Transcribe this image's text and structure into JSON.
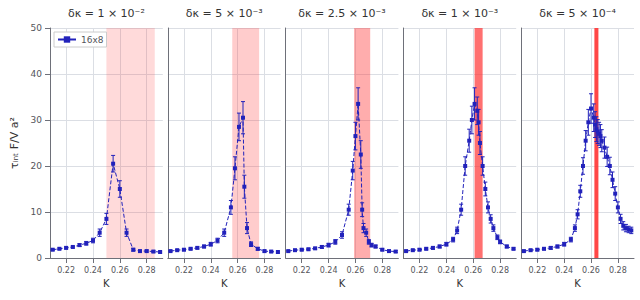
{
  "chart_data": [
    {
      "type": "line",
      "title": "δκ = 1 × 10⁻²",
      "xlabel": "K",
      "ylabel": "τᵢₙₜ F/V a²",
      "x": [
        0.21,
        0.215,
        0.22,
        0.225,
        0.23,
        0.235,
        0.24,
        0.245,
        0.25,
        0.255,
        0.26,
        0.265,
        0.27,
        0.275,
        0.28,
        0.285,
        0.29
      ],
      "series": [
        {
          "name": "16x8",
          "color": "#2222bb",
          "marker": "square",
          "line_style": "dashed",
          "values": [
            1.8,
            2.0,
            2.2,
            2.4,
            2.8,
            3.2,
            3.8,
            5.5,
            8.5,
            20.5,
            15.0,
            5.5,
            1.8,
            1.5,
            1.5,
            1.4,
            1.3
          ],
          "errors": [
            0.15,
            0.15,
            0.2,
            0.2,
            0.3,
            0.4,
            0.5,
            0.8,
            1.2,
            1.8,
            1.8,
            0.8,
            0.3,
            0.2,
            0.2,
            0.2,
            0.2
          ]
        }
      ],
      "shaded_region": {
        "from": 0.25,
        "to": 0.286,
        "color": "#ff3333"
      },
      "xlim": [
        0.208,
        0.292
      ],
      "ylim": [
        0,
        50
      ],
      "xticks": [
        0.22,
        0.24,
        0.26,
        0.28
      ],
      "yticks": [
        0,
        10,
        20,
        30,
        40,
        50
      ],
      "grid": true,
      "legend": "upper left"
    },
    {
      "type": "line",
      "title": "δκ = 5 × 10⁻³",
      "xlabel": "K",
      "x": [
        0.21,
        0.215,
        0.22,
        0.225,
        0.23,
        0.235,
        0.24,
        0.245,
        0.25,
        0.255,
        0.258,
        0.261,
        0.264,
        0.265,
        0.267,
        0.27,
        0.275,
        0.28,
        0.285,
        0.29
      ],
      "series": [
        {
          "name": "16x8",
          "color": "#2222bb",
          "marker": "square",
          "line_style": "dashed",
          "values": [
            1.5,
            1.7,
            1.8,
            2.0,
            2.2,
            2.5,
            3.0,
            3.8,
            5.5,
            11.0,
            19.5,
            28.5,
            30.5,
            15.5,
            6.5,
            3.0,
            2.0,
            1.5,
            1.4,
            1.3
          ],
          "errors": [
            0.15,
            0.15,
            0.2,
            0.2,
            0.2,
            0.3,
            0.4,
            0.5,
            0.8,
            1.5,
            2.5,
            3.0,
            3.5,
            2.5,
            1.2,
            0.5,
            0.3,
            0.2,
            0.2,
            0.2
          ]
        }
      ],
      "shaded_region": {
        "from": 0.256,
        "to": 0.276,
        "color": "#ff3333"
      },
      "xlim": [
        0.208,
        0.292
      ],
      "ylim": [
        0,
        50
      ],
      "xticks": [
        0.22,
        0.24,
        0.26,
        0.28
      ],
      "yticks": [
        0,
        10,
        20,
        30,
        40,
        50
      ],
      "grid": true,
      "tick_labels": "x"
    },
    {
      "type": "line",
      "title": "δκ = 2.5 × 10⁻³",
      "xlabel": "K",
      "x": [
        0.21,
        0.215,
        0.22,
        0.225,
        0.23,
        0.235,
        0.24,
        0.245,
        0.25,
        0.255,
        0.258,
        0.26,
        0.262,
        0.264,
        0.265,
        0.266,
        0.268,
        0.27,
        0.272,
        0.275,
        0.28,
        0.285,
        0.29
      ],
      "series": [
        {
          "name": "16x8",
          "color": "#2222bb",
          "marker": "square",
          "line_style": "dashed",
          "values": [
            1.5,
            1.7,
            1.8,
            1.9,
            2.1,
            2.4,
            2.8,
            3.5,
            5.0,
            10.5,
            19.0,
            26.5,
            33.5,
            22.5,
            10.5,
            6.5,
            5.5,
            3.5,
            2.8,
            2.5,
            1.8,
            1.5,
            1.4
          ],
          "errors": [
            0.15,
            0.15,
            0.2,
            0.2,
            0.2,
            0.3,
            0.4,
            0.5,
            0.7,
            1.2,
            2.0,
            3.0,
            3.5,
            3.0,
            1.5,
            1.0,
            0.8,
            0.5,
            0.4,
            0.3,
            0.2,
            0.2,
            0.2
          ]
        }
      ],
      "shaded_region": {
        "from": 0.259,
        "to": 0.271,
        "color": "#ff3333"
      },
      "xlim": [
        0.208,
        0.292
      ],
      "ylim": [
        0,
        50
      ],
      "xticks": [
        0.22,
        0.24,
        0.26,
        0.28
      ],
      "yticks": [
        0,
        10,
        20,
        30,
        40,
        50
      ],
      "grid": true,
      "tick_labels": "x"
    },
    {
      "type": "line",
      "title": "δκ = 1 × 10⁻³",
      "xlabel": "K",
      "x": [
        0.21,
        0.215,
        0.22,
        0.225,
        0.23,
        0.235,
        0.24,
        0.245,
        0.248,
        0.251,
        0.254,
        0.257,
        0.259,
        0.261,
        0.263,
        0.264,
        0.265,
        0.267,
        0.269,
        0.271,
        0.273,
        0.275,
        0.278,
        0.28,
        0.285,
        0.29
      ],
      "series": [
        {
          "name": "16x8",
          "color": "#2222bb",
          "marker": "square",
          "line_style": "dashed",
          "values": [
            1.5,
            1.7,
            1.8,
            2.0,
            2.2,
            2.5,
            3.0,
            4.0,
            6.0,
            10.5,
            20.0,
            25.5,
            30.0,
            33.5,
            32.0,
            29.5,
            25.0,
            20.0,
            15.0,
            11.0,
            8.5,
            6.5,
            4.5,
            3.5,
            2.5,
            2.0
          ],
          "errors": [
            0.15,
            0.15,
            0.2,
            0.2,
            0.3,
            0.3,
            0.4,
            0.5,
            0.7,
            1.2,
            2.0,
            2.5,
            3.0,
            3.5,
            3.0,
            2.8,
            2.5,
            2.0,
            1.5,
            1.2,
            0.9,
            0.7,
            0.5,
            0.4,
            0.3,
            0.2
          ]
        }
      ],
      "shaded_region": {
        "from": 0.261,
        "to": 0.267,
        "color": "#ff3333"
      },
      "xlim": [
        0.208,
        0.292
      ],
      "ylim": [
        0,
        50
      ],
      "xticks": [
        0.22,
        0.24,
        0.26,
        0.28
      ],
      "yticks": [
        0,
        10,
        20,
        30,
        40,
        50
      ],
      "grid": true,
      "tick_labels": "x"
    },
    {
      "type": "line",
      "title": "δκ = 5 × 10⁻⁴",
      "xlabel": "K",
      "x": [
        0.21,
        0.215,
        0.22,
        0.225,
        0.23,
        0.235,
        0.24,
        0.245,
        0.248,
        0.25,
        0.252,
        0.254,
        0.256,
        0.258,
        0.26,
        0.262,
        0.263,
        0.264,
        0.265,
        0.266,
        0.267,
        0.268,
        0.27,
        0.272,
        0.274,
        0.276,
        0.278,
        0.28,
        0.282,
        0.284,
        0.286,
        0.288,
        0.29
      ],
      "series": [
        {
          "name": "16x8",
          "color": "#2222bb",
          "marker": "square",
          "line_style": "dashed",
          "values": [
            1.5,
            1.7,
            1.8,
            2.0,
            2.2,
            2.5,
            3.0,
            4.0,
            6.5,
            9.5,
            14.5,
            20.0,
            25.5,
            29.5,
            32.5,
            30.5,
            29.0,
            28.0,
            27.5,
            27.0,
            26.5,
            25.5,
            24.0,
            22.0,
            20.0,
            17.0,
            14.0,
            11.0,
            8.5,
            7.0,
            6.5,
            6.2,
            6.0
          ],
          "errors": [
            0.15,
            0.15,
            0.2,
            0.2,
            0.3,
            0.3,
            0.4,
            0.5,
            0.7,
            1.0,
            1.3,
            1.8,
            2.2,
            2.8,
            3.2,
            3.0,
            2.8,
            2.7,
            2.6,
            2.5,
            2.5,
            2.4,
            2.3,
            2.1,
            1.9,
            1.7,
            1.5,
            1.2,
            1.0,
            0.9,
            0.8,
            0.7,
            0.7
          ]
        }
      ],
      "shaded_region": {
        "from": 0.2625,
        "to": 0.2655,
        "color": "#ff3333"
      },
      "xlim": [
        0.208,
        0.292
      ],
      "ylim": [
        0,
        50
      ],
      "xticks": [
        0.22,
        0.24,
        0.26,
        0.28
      ],
      "yticks": [
        0,
        10,
        20,
        30,
        40,
        50
      ],
      "grid": true,
      "tick_labels": "x"
    }
  ]
}
